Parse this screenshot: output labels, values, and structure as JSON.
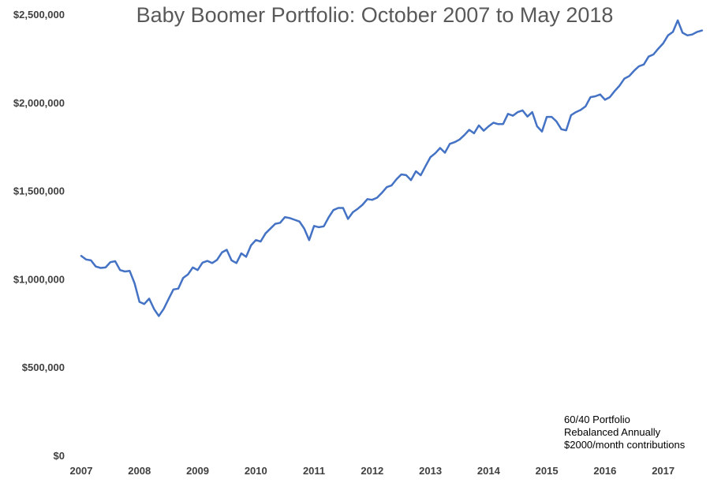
{
  "chart_data": {
    "type": "line",
    "title": "Baby Boomer Portfolio: October 2007 to May 2018",
    "xlabel": "",
    "ylabel": "",
    "x_tick_labels": [
      "2007",
      "2008",
      "2009",
      "2010",
      "2011",
      "2012",
      "2013",
      "2014",
      "2015",
      "2016",
      "2017"
    ],
    "y_tick_labels": [
      "$0",
      "$500,000",
      "$1,000,000",
      "$1,500,000",
      "$2,000,000",
      "$2,500,000"
    ],
    "ylim": [
      0,
      2500000
    ],
    "grid": false,
    "legend": "none",
    "annotation": [
      "60/40 Portfolio",
      "Rebalanced Annually",
      "$2000/month contributions"
    ],
    "line_color": "#4472C4",
    "series": [
      {
        "x": [
          2007.0,
          2007.083,
          2007.167,
          2007.25,
          2007.333,
          2007.417,
          2007.5,
          2007.583,
          2007.667,
          2007.75,
          2007.833,
          2007.917,
          2008.0,
          2008.083,
          2008.167,
          2008.25,
          2008.333,
          2008.417,
          2008.5,
          2008.583,
          2008.667,
          2008.75,
          2008.833,
          2008.917,
          2009.0,
          2009.083,
          2009.167,
          2009.25,
          2009.333,
          2009.417,
          2009.5,
          2009.583,
          2009.667,
          2009.75,
          2009.833,
          2009.917,
          2010.0,
          2010.083,
          2010.167,
          2010.25,
          2010.333,
          2010.417,
          2010.5,
          2010.583,
          2010.667,
          2010.75,
          2010.833,
          2010.917,
          2011.0,
          2011.083,
          2011.167,
          2011.25,
          2011.333,
          2011.417,
          2011.5,
          2011.583,
          2011.667,
          2011.75,
          2011.833,
          2011.917,
          2012.0,
          2012.083,
          2012.167,
          2012.25,
          2012.333,
          2012.417,
          2012.5,
          2012.583,
          2012.667,
          2012.75,
          2012.833,
          2012.917,
          2013.0,
          2013.083,
          2013.167,
          2013.25,
          2013.333,
          2013.417,
          2013.5,
          2013.583,
          2013.667,
          2013.75,
          2013.833,
          2013.917,
          2014.0,
          2014.083,
          2014.167,
          2014.25,
          2014.333,
          2014.417,
          2014.5,
          2014.583,
          2014.667,
          2014.75,
          2014.833,
          2014.917,
          2015.0,
          2015.083,
          2015.167,
          2015.25,
          2015.333,
          2015.417,
          2015.5,
          2015.583,
          2015.667,
          2015.75,
          2015.833,
          2015.917,
          2016.0,
          2016.083,
          2016.167,
          2016.25,
          2016.333,
          2016.417,
          2016.5,
          2016.583,
          2016.667,
          2016.75,
          2016.833,
          2016.917,
          2017.0,
          2017.083,
          2017.167,
          2017.25,
          2017.333,
          2017.417,
          2017.5,
          2017.583,
          2017.667
        ],
        "values": [
          1130000,
          1110000,
          1105000,
          1070000,
          1062000,
          1065000,
          1095000,
          1100000,
          1050000,
          1042000,
          1045000,
          975000,
          870000,
          858000,
          888000,
          830000,
          790000,
          830000,
          885000,
          940000,
          945000,
          1005000,
          1025000,
          1065000,
          1050000,
          1092000,
          1102000,
          1090000,
          1108000,
          1150000,
          1165000,
          1105000,
          1090000,
          1145000,
          1125000,
          1190000,
          1220000,
          1212000,
          1258000,
          1285000,
          1312000,
          1318000,
          1350000,
          1345000,
          1335000,
          1325000,
          1285000,
          1220000,
          1300000,
          1293000,
          1298000,
          1348000,
          1390000,
          1402000,
          1402000,
          1340000,
          1378000,
          1397000,
          1420000,
          1452000,
          1448000,
          1460000,
          1488000,
          1520000,
          1530000,
          1565000,
          1592000,
          1588000,
          1560000,
          1610000,
          1587000,
          1640000,
          1690000,
          1712000,
          1742000,
          1715000,
          1765000,
          1775000,
          1790000,
          1815000,
          1845000,
          1825000,
          1870000,
          1840000,
          1865000,
          1885000,
          1877000,
          1878000,
          1935000,
          1925000,
          1945000,
          1955000,
          1920000,
          1945000,
          1865000,
          1835000,
          1918000,
          1918000,
          1892000,
          1848000,
          1842000,
          1928000,
          1945000,
          1958000,
          1978000,
          2030000,
          2035000,
          2045000,
          2015000,
          2030000,
          2065000,
          2095000,
          2135000,
          2150000,
          2180000,
          2205000,
          2215000,
          2260000,
          2272000,
          2305000,
          2335000,
          2380000,
          2400000,
          2465000,
          2395000,
          2380000,
          2385000,
          2400000,
          2408000
        ]
      }
    ]
  }
}
